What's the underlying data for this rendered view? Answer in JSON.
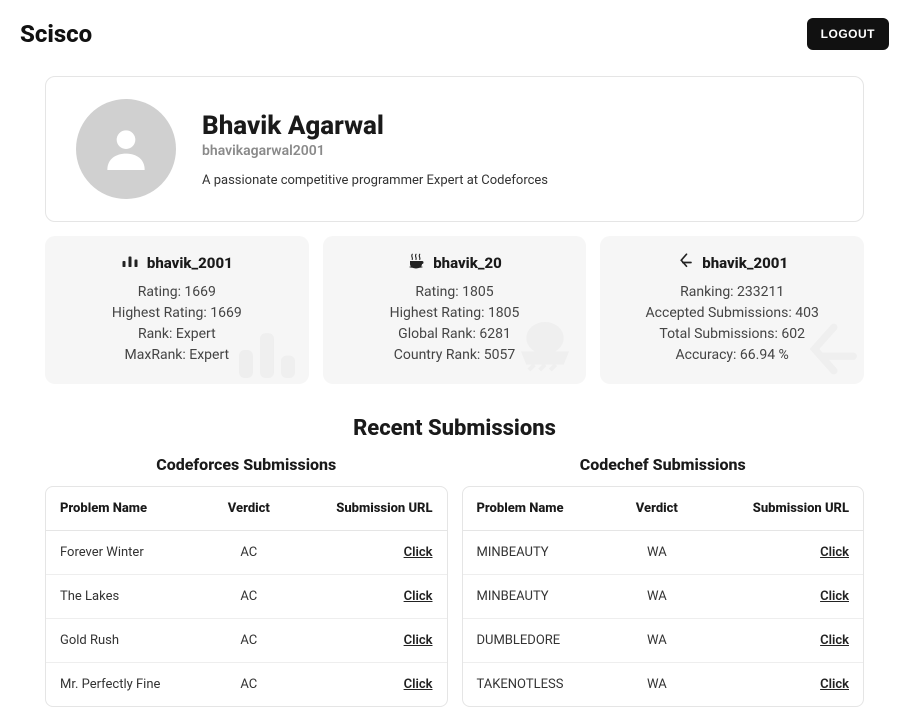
{
  "header": {
    "brand": "Scisco",
    "logout_label": "LOGOUT"
  },
  "profile": {
    "name": "Bhavik Agarwal",
    "handle": "bhavikagarwal2001",
    "description": "A passionate competitive programmer Expert at Codeforces"
  },
  "stats": [
    {
      "icon": "codeforces-icon",
      "handle": "bhavik_2001",
      "lines": [
        "Rating: 1669",
        "Highest Rating: 1669",
        "Rank: Expert",
        "MaxRank: Expert"
      ]
    },
    {
      "icon": "codechef-icon",
      "handle": "bhavik_20",
      "lines": [
        "Rating: 1805",
        "Highest Rating: 1805",
        "Global Rank: 6281",
        "Country Rank: 5057"
      ]
    },
    {
      "icon": "leetcode-icon",
      "handle": "bhavik_2001",
      "lines": [
        "Ranking: 233211",
        "Accepted Submissions: 403",
        "Total Submissions: 602",
        "Accuracy: 66.94 %"
      ]
    }
  ],
  "recent_title": "Recent Submissions",
  "submissions": {
    "click_label": "Click",
    "columns": {
      "problem": "Problem Name",
      "verdict": "Verdict",
      "url": "Submission URL"
    },
    "tables": [
      {
        "title": "Codeforces Submissions",
        "rows": [
          {
            "problem": "Forever Winter",
            "verdict": "AC"
          },
          {
            "problem": "The Lakes",
            "verdict": "AC"
          },
          {
            "problem": "Gold Rush",
            "verdict": "AC"
          },
          {
            "problem": "Mr. Perfectly Fine",
            "verdict": "AC"
          }
        ]
      },
      {
        "title": "Codechef Submissions",
        "rows": [
          {
            "problem": "MINBEAUTY",
            "verdict": "WA"
          },
          {
            "problem": "MINBEAUTY",
            "verdict": "WA"
          },
          {
            "problem": "DUMBLEDORE",
            "verdict": "WA"
          },
          {
            "problem": "TAKENOTLESS",
            "verdict": "WA"
          }
        ]
      }
    ]
  },
  "colors": {
    "card_bg": "#f6f6f6",
    "border": "#e5e5e5",
    "text_muted": "#8a8a8a",
    "avatar_bg": "#d0d0d0"
  }
}
